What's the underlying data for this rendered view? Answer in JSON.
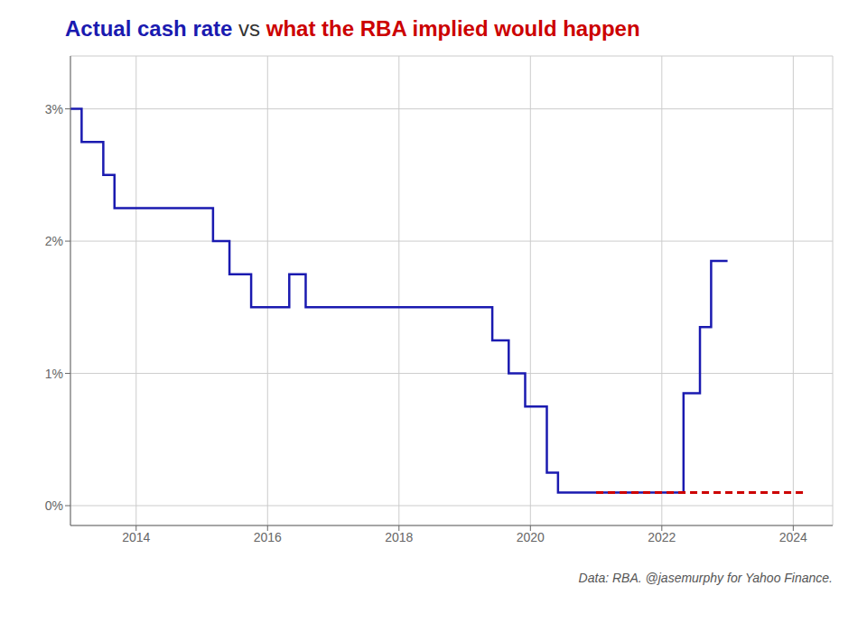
{
  "chart_data": {
    "type": "line",
    "title": [
      {
        "text": "Actual cash rate",
        "color": "#1a1ab0"
      },
      {
        "text": " vs ",
        "color": "#333333"
      },
      {
        "text": "what the RBA implied would happen",
        "color": "#cc0000"
      }
    ],
    "annotations": [
      "Data: RBA. @jasemurphy for Yahoo Finance."
    ],
    "series": [
      {
        "type": "step",
        "color": "#1a1ab0",
        "line_style": "solid",
        "x": [
          2013.0,
          2013.17,
          2013.5,
          2013.67,
          2014.08,
          2015.17,
          2015.42,
          2015.75,
          2016.33,
          2016.58,
          2019.42,
          2019.67,
          2019.92,
          2020.25,
          2020.42,
          2020.92,
          2022.33,
          2022.58,
          2022.75,
          2022.92,
          2023.0
        ],
        "values": [
          3.0,
          2.75,
          2.5,
          2.25,
          2.25,
          2.0,
          1.75,
          1.5,
          1.75,
          1.5,
          1.25,
          1.0,
          0.75,
          0.25,
          0.1,
          0.1,
          0.85,
          1.35,
          1.85,
          1.85,
          1.85
        ]
      },
      {
        "type": "line",
        "color": "#cc0000",
        "line_style": "dashed",
        "x": [
          2021.0,
          2021.5,
          2022.0,
          2022.33,
          2022.75,
          2023.25,
          2023.75,
          2024.17
        ],
        "values": [
          0.1,
          0.1,
          0.1,
          0.1,
          0.1,
          0.1,
          0.1,
          0.1
        ]
      }
    ],
    "xlim": [
      2013.0,
      2024.6
    ],
    "ylim": [
      -0.15,
      3.4
    ],
    "xticks": [
      2014,
      2016,
      2018,
      2020,
      2022,
      2024
    ],
    "yticks": [
      {
        "value": 0.0,
        "label": "0%"
      },
      {
        "value": 1.0,
        "label": "1%"
      },
      {
        "value": 2.0,
        "label": "2%"
      },
      {
        "value": 3.0,
        "label": "3%"
      }
    ],
    "grid": true
  }
}
